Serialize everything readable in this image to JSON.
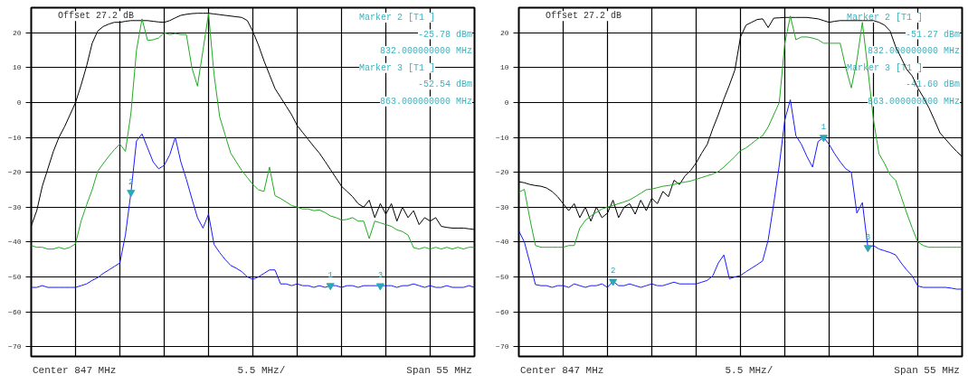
{
  "chart_data": [
    {
      "type": "line",
      "categories": [
        null,
        null,
        null,
        null,
        null,
        null,
        null,
        null,
        null,
        null,
        null,
        null,
        null,
        null,
        null,
        null,
        null,
        null,
        null,
        null,
        null,
        null,
        null,
        null,
        null,
        null,
        null,
        null,
        null,
        null,
        null,
        null,
        null,
        null,
        null,
        null,
        null,
        null,
        null,
        null,
        null,
        null,
        null,
        null,
        null,
        null,
        null,
        null,
        null,
        null,
        null,
        null,
        null,
        null,
        null,
        null,
        null,
        null,
        null,
        null,
        null,
        null,
        null,
        null,
        null,
        null,
        null,
        null,
        null,
        null,
        null,
        null,
        null,
        null,
        null,
        null,
        null,
        null,
        null,
        null,
        null
      ],
      "ylim": [
        -72.8,
        27.2
      ],
      "yticks": [
        -70,
        -60,
        -50,
        -40,
        -30,
        -20,
        -10,
        0,
        10,
        20
      ],
      "grid": true,
      "annotations": [
        "Offset  27.2 dB",
        "Marker 2 [T1 ]",
        "-25.78 dBm",
        "832.000000000 MHz",
        "Marker 3 [T1 ]",
        "-52.54 dBm",
        "863.000000000 MHz",
        "Center 847 MHz",
        "5.5 MHz/",
        "Span 55 MHz"
      ],
      "series": [
        {
          "color": "#000000",
          "values": [
            -35.4,
            -31,
            -24,
            -19,
            -14,
            -10,
            -7,
            -3.5,
            0,
            5,
            10.5,
            17,
            20.5,
            21.8,
            22.5,
            23,
            23,
            23.3,
            23.5,
            23.5,
            23.5,
            23.5,
            23.3,
            23.1,
            23,
            23.5,
            24.3,
            25,
            25.3,
            25.5,
            25.6,
            25.6,
            25.6,
            25.4,
            25.2,
            25,
            24.8,
            24.6,
            24.4,
            23.5,
            20.4,
            16.5,
            12,
            8,
            4,
            1.5,
            -1,
            -3.5,
            -6.6,
            -8.6,
            -10.6,
            -12.6,
            -14.5,
            -16.8,
            -19.2,
            -21.6,
            -24,
            -25.5,
            -27,
            -29,
            -30,
            -28,
            -33,
            -29,
            -32,
            -29,
            -34,
            -30,
            -33,
            -31,
            -35,
            -33,
            -34,
            -33,
            -35.5,
            -35.8,
            -36,
            -36,
            -36,
            -36.2,
            -36.4
          ]
        },
        {
          "color": "#22aa22",
          "values": [
            -41,
            -41.5,
            -41.5,
            -42,
            -42,
            -41.5,
            -42,
            -41.5,
            -40.5,
            -34,
            -29.3,
            -25,
            -19.7,
            -17.5,
            -15.4,
            -13.5,
            -11.9,
            -14,
            -3,
            15,
            24,
            17.8,
            18,
            18.5,
            20,
            19.5,
            19.8,
            19.5,
            19.5,
            10,
            4.7,
            15,
            25.5,
            8,
            -4,
            -9.3,
            -14.5,
            -17,
            -19.5,
            -21.5,
            -23.5,
            -25,
            -25.5,
            -18.5,
            -26.7,
            -27.5,
            -28.5,
            -29.5,
            -30,
            -30.5,
            -30.5,
            -31,
            -30.8,
            -31.5,
            -32.5,
            -33,
            -33.7,
            -33.5,
            -33,
            -34,
            -34,
            -39,
            -34,
            -34.5,
            -35,
            -35.5,
            -36.5,
            -37,
            -38,
            -41.6,
            -42,
            -41.5,
            -42,
            -41.5,
            -42,
            -41.5,
            -42,
            -41.5,
            -42,
            -41.5,
            -41.5
          ]
        },
        {
          "color": "#1a1aff",
          "values": [
            -53,
            -53,
            -52.5,
            -53,
            -53,
            -53,
            -53,
            -53,
            -53,
            -52.5,
            -52,
            -51,
            -50.2,
            -49,
            -48,
            -47,
            -46,
            -38,
            -25.78,
            -11,
            -9,
            -13,
            -17,
            -19,
            -18,
            -15,
            -10,
            -17,
            -22,
            -27.6,
            -33,
            -36,
            -32,
            -40.7,
            -43,
            -45,
            -46.7,
            -47.5,
            -48.5,
            -50,
            -50.7,
            -50,
            -49,
            -48,
            -48,
            -52,
            -52,
            -52.5,
            -52,
            -52.5,
            -52.5,
            -53,
            -52.5,
            -53,
            -52.5,
            -52.5,
            -53,
            -52.5,
            -52.5,
            -53,
            -52.5,
            -52.5,
            -52.5,
            -52.54,
            -52.5,
            -52.5,
            -53,
            -52.5,
            -52.5,
            -52,
            -52.5,
            -53,
            -52.5,
            -53,
            -53,
            -52.5,
            -53,
            -53,
            -53,
            -52.5,
            -53
          ]
        },
        {
          "type": "scatter",
          "marker": "triangle",
          "name": "1",
          "color": "#2aa8b8",
          "values": [
            null,
            null,
            null,
            null,
            null,
            null,
            null,
            null,
            null,
            null,
            null,
            null,
            null,
            null,
            null,
            null,
            null,
            null,
            null,
            null,
            null,
            null,
            null,
            null,
            null,
            null,
            null,
            null,
            null,
            null,
            null,
            null,
            null,
            null,
            null,
            null,
            null,
            null,
            null,
            null,
            null,
            null,
            null,
            null,
            null,
            null,
            null,
            null,
            null,
            null,
            null,
            null,
            null,
            null,
            -52.5,
            null,
            null,
            null,
            null,
            null,
            null,
            null,
            null,
            null,
            null,
            null,
            null,
            null,
            null,
            null,
            null,
            null,
            null,
            null,
            null,
            null,
            null,
            null,
            null,
            null,
            null
          ]
        },
        {
          "type": "scatter",
          "marker": "triangle",
          "name": "2",
          "color": "#2aa8b8",
          "values": [
            null,
            null,
            null,
            null,
            null,
            null,
            null,
            null,
            null,
            null,
            null,
            null,
            null,
            null,
            null,
            null,
            null,
            null,
            -25.78,
            null,
            null,
            null,
            null,
            null,
            null,
            null,
            null,
            null,
            null,
            null,
            null,
            null,
            null,
            null,
            null,
            null,
            null,
            null,
            null,
            null,
            null,
            null,
            null,
            null,
            null,
            null,
            null,
            null,
            null,
            null,
            null,
            null,
            null,
            null,
            null,
            null,
            null,
            null,
            null,
            null,
            null,
            null,
            null,
            null,
            null,
            null,
            null,
            null,
            null,
            null,
            null,
            null,
            null,
            null,
            null,
            null,
            null,
            null,
            null,
            null,
            null
          ]
        },
        {
          "type": "scatter",
          "marker": "triangle",
          "name": "3",
          "color": "#2aa8b8",
          "values": [
            null,
            null,
            null,
            null,
            null,
            null,
            null,
            null,
            null,
            null,
            null,
            null,
            null,
            null,
            null,
            null,
            null,
            null,
            null,
            null,
            null,
            null,
            null,
            null,
            null,
            null,
            null,
            null,
            null,
            null,
            null,
            null,
            null,
            null,
            null,
            null,
            null,
            null,
            null,
            null,
            null,
            null,
            null,
            null,
            null,
            null,
            null,
            null,
            null,
            null,
            null,
            null,
            null,
            null,
            null,
            null,
            null,
            null,
            null,
            null,
            null,
            null,
            null,
            -52.54,
            null,
            null,
            null,
            null,
            null,
            null,
            null,
            null,
            null,
            null,
            null,
            null,
            null,
            null,
            null,
            null,
            null
          ]
        }
      ]
    },
    {
      "type": "line",
      "categories": [
        null,
        null,
        null,
        null,
        null,
        null,
        null,
        null,
        null,
        null,
        null,
        null,
        null,
        null,
        null,
        null,
        null,
        null,
        null,
        null,
        null,
        null,
        null,
        null,
        null,
        null,
        null,
        null,
        null,
        null,
        null,
        null,
        null,
        null,
        null,
        null,
        null,
        null,
        null,
        null,
        null,
        null,
        null,
        null,
        null,
        null,
        null,
        null,
        null,
        null,
        null,
        null,
        null,
        null,
        null,
        null,
        null,
        null,
        null,
        null,
        null,
        null,
        null,
        null,
        null,
        null,
        null,
        null,
        null,
        null,
        null,
        null,
        null,
        null,
        null,
        null,
        null,
        null,
        null,
        null,
        null
      ],
      "ylim": [
        -72.8,
        27.2
      ],
      "yticks": [
        -70,
        -60,
        -50,
        -40,
        -30,
        -20,
        -10,
        0,
        10,
        20
      ],
      "grid": true,
      "annotations": [
        "Offset  27.2 dB",
        "Marker 2 [T1 ]",
        "-51.27 dBm",
        "832.000000000 MHz",
        "Marker 3 [T1 ]",
        "-41.60 dBm",
        "863.000000000 MHz",
        "Center 847 MHz",
        "5.5 MHz/",
        "Span 55 MHz"
      ],
      "series": [
        {
          "color": "#000000",
          "values": [
            -22.7,
            -23,
            -23.5,
            -23.8,
            -24,
            -24.5,
            -25.5,
            -27,
            -29,
            -31,
            -29,
            -33,
            -30,
            -34,
            -30,
            -33,
            -31.7,
            -28,
            -33,
            -30,
            -29,
            -32,
            -28,
            -31,
            -27.4,
            -29,
            -25.5,
            -27,
            -22.3,
            -23.5,
            -21,
            -19.5,
            -17.3,
            -14.5,
            -12,
            -7.5,
            -3.5,
            1,
            5,
            9.4,
            18.8,
            22.2,
            23,
            23.8,
            24,
            21.5,
            24.2,
            24.3,
            24.4,
            24.4,
            24.4,
            24.4,
            24.4,
            24.2,
            24,
            23.5,
            23,
            23.3,
            23.5,
            23.5,
            23.5,
            23.5,
            23.5,
            23.5,
            23.5,
            23,
            22.2,
            20.5,
            16,
            12.8,
            9.5,
            7.6,
            4.2,
            1.5,
            -1.5,
            -5,
            -8.7,
            -10.5,
            -12.3,
            -14,
            -15.5
          ]
        },
        {
          "color": "#22aa22",
          "values": [
            -25.7,
            -24.9,
            -33.4,
            -41,
            -41.5,
            -41.5,
            -41.5,
            -41.5,
            -41.5,
            -41,
            -41,
            -36,
            -33.8,
            -32.5,
            -31.5,
            -30.5,
            -30,
            -29.5,
            -29,
            -28.5,
            -27.9,
            -27,
            -26,
            -25,
            -24.8,
            -24.4,
            -24,
            -23.8,
            -23.5,
            -23,
            -22.8,
            -22.5,
            -22,
            -21.5,
            -21,
            -20.5,
            -19.8,
            -18.5,
            -17,
            -15.5,
            -13.8,
            -13,
            -11.8,
            -10.5,
            -9.5,
            -7,
            -3.5,
            0,
            17,
            24.8,
            18,
            18.8,
            18.8,
            18.5,
            18,
            17,
            17,
            17,
            17,
            10,
            4.2,
            12,
            23,
            9.4,
            -5,
            -14.7,
            -17.5,
            -20.7,
            -22.3,
            -27,
            -31.7,
            -36,
            -40,
            -41,
            -41.5,
            -41.5,
            -41.5,
            -41.5,
            -41.5,
            -41.5,
            -41.5
          ]
        },
        {
          "color": "#1a1aff",
          "values": [
            -36.8,
            -40,
            -46,
            -52.2,
            -52.5,
            -52.5,
            -53,
            -52.5,
            -52.5,
            -53,
            -52,
            -52.5,
            -53,
            -52.5,
            -52.5,
            -52,
            -53,
            -51.27,
            -52.5,
            -52.5,
            -52,
            -52.5,
            -53,
            -52.5,
            -52,
            -52.5,
            -52.5,
            -52,
            -51.5,
            -52,
            -52,
            -52,
            -52,
            -51.5,
            -51,
            -49.7,
            -46,
            -43.7,
            -50.5,
            -50,
            -49.6,
            -48.5,
            -47.5,
            -46.5,
            -45.4,
            -39.4,
            -29,
            -18,
            -5,
            0.8,
            -9.5,
            -12,
            -15.5,
            -18.5,
            -11.2,
            -10,
            -12,
            -14.7,
            -17,
            -19,
            -20,
            -31.7,
            -28.7,
            -41.6,
            -41,
            -42,
            -42.5,
            -43,
            -43.7,
            -46,
            -48,
            -49.7,
            -52.6,
            -53,
            -53,
            -53,
            -53,
            -53,
            -53.2,
            -53.5,
            -53.5
          ]
        },
        {
          "type": "scatter",
          "marker": "triangle",
          "name": "1",
          "color": "#2aa8b8",
          "values": [
            null,
            null,
            null,
            null,
            null,
            null,
            null,
            null,
            null,
            null,
            null,
            null,
            null,
            null,
            null,
            null,
            null,
            null,
            null,
            null,
            null,
            null,
            null,
            null,
            null,
            null,
            null,
            null,
            null,
            null,
            null,
            null,
            null,
            null,
            null,
            null,
            null,
            null,
            null,
            null,
            null,
            null,
            null,
            null,
            null,
            null,
            null,
            null,
            null,
            null,
            null,
            null,
            null,
            null,
            null,
            -10,
            null,
            null,
            null,
            null,
            null,
            null,
            null,
            null,
            null,
            null,
            null,
            null,
            null,
            null,
            null,
            null,
            null,
            null,
            null,
            null,
            null,
            null,
            null,
            null,
            null
          ]
        },
        {
          "type": "scatter",
          "marker": "triangle",
          "name": "2",
          "color": "#2aa8b8",
          "values": [
            null,
            null,
            null,
            null,
            null,
            null,
            null,
            null,
            null,
            null,
            null,
            null,
            null,
            null,
            null,
            null,
            null,
            -51.27,
            null,
            null,
            null,
            null,
            null,
            null,
            null,
            null,
            null,
            null,
            null,
            null,
            null,
            null,
            null,
            null,
            null,
            null,
            null,
            null,
            null,
            null,
            null,
            null,
            null,
            null,
            null,
            null,
            null,
            null,
            null,
            null,
            null,
            null,
            null,
            null,
            null,
            null,
            null,
            null,
            null,
            null,
            null,
            null,
            null,
            null,
            null,
            null,
            null,
            null,
            null,
            null,
            null,
            null,
            null,
            null,
            null,
            null,
            null,
            null,
            null,
            null,
            null
          ]
        },
        {
          "type": "scatter",
          "marker": "triangle",
          "name": "3",
          "color": "#2aa8b8",
          "values": [
            null,
            null,
            null,
            null,
            null,
            null,
            null,
            null,
            null,
            null,
            null,
            null,
            null,
            null,
            null,
            null,
            null,
            null,
            null,
            null,
            null,
            null,
            null,
            null,
            null,
            null,
            null,
            null,
            null,
            null,
            null,
            null,
            null,
            null,
            null,
            null,
            null,
            null,
            null,
            null,
            null,
            null,
            null,
            null,
            null,
            null,
            null,
            null,
            null,
            null,
            null,
            null,
            null,
            null,
            null,
            null,
            null,
            null,
            null,
            null,
            null,
            null,
            null,
            -41.6,
            null,
            null,
            null,
            null,
            null,
            null,
            null,
            null,
            null,
            null,
            null,
            null,
            null,
            null,
            null,
            null,
            null
          ]
        }
      ]
    }
  ]
}
